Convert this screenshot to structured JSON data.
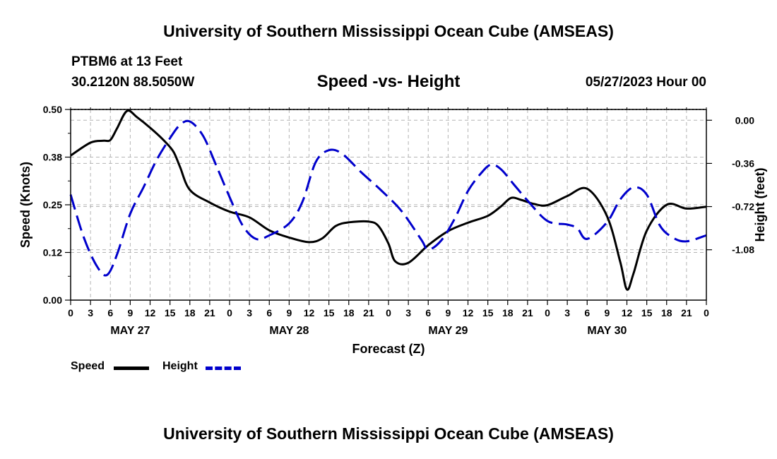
{
  "page": {
    "title_top": "University of Southern Mississippi Ocean Cube (AMSEAS)",
    "title_bottom": "University of Southern Mississippi Ocean Cube (AMSEAS)",
    "station": "PTBM6 at 13 Feet",
    "location": "30.2120N  88.5050W",
    "date_label": "05/27/2023 Hour 00"
  },
  "legend": {
    "speed_label": "Speed",
    "height_label": "Height"
  },
  "chart_data": {
    "type": "line",
    "title": "Speed -vs- Height",
    "xlabel": "Forecast (Z)",
    "ylabel_left": "Speed (Knots)",
    "ylabel_right": "Height (feet)",
    "x_range_hours": [
      0,
      96
    ],
    "x_tick_step_hours": 3,
    "x_tick_labels": [
      "0",
      "3",
      "6",
      "9",
      "12",
      "15",
      "18",
      "21",
      "0",
      "3",
      "6",
      "9",
      "12",
      "15",
      "18",
      "21",
      "0",
      "3",
      "6",
      "9",
      "12",
      "15",
      "18",
      "21",
      "0",
      "3",
      "6",
      "9",
      "12",
      "15",
      "18",
      "21",
      "0"
    ],
    "day_labels": [
      {
        "text": "MAY 27",
        "hour": 9
      },
      {
        "text": "MAY 28",
        "hour": 33
      },
      {
        "text": "MAY 29",
        "hour": 57
      },
      {
        "text": "MAY 30",
        "hour": 81
      }
    ],
    "ylim_left": [
      0,
      0.5
    ],
    "y_ticks_left": [
      0.0,
      0.125,
      0.25,
      0.375,
      0.5
    ],
    "y_tick_labels_left": [
      "0.00",
      "0.12",
      "0.25",
      "0.38",
      "0.50"
    ],
    "ylim_right": [
      -1.5,
      0.09
    ],
    "y_ticks_right": [
      0.0,
      -0.36,
      -0.72,
      -1.08
    ],
    "y_tick_labels_right": [
      "0.00",
      "-0.36",
      "-0.72",
      "-1.08"
    ],
    "grid": true,
    "series": [
      {
        "name": "Speed",
        "axis": "left",
        "color": "#000000",
        "dashed": false,
        "points": [
          [
            0,
            0.379
          ],
          [
            3,
            0.413
          ],
          [
            5,
            0.418
          ],
          [
            6,
            0.42
          ],
          [
            7,
            0.45
          ],
          [
            8.5,
            0.496
          ],
          [
            10,
            0.48
          ],
          [
            12,
            0.452
          ],
          [
            14,
            0.42
          ],
          [
            15.5,
            0.39
          ],
          [
            16.5,
            0.35
          ],
          [
            18,
            0.289
          ],
          [
            21,
            0.256
          ],
          [
            24,
            0.232
          ],
          [
            27,
            0.217
          ],
          [
            30,
            0.183
          ],
          [
            33,
            0.164
          ],
          [
            36,
            0.152
          ],
          [
            38,
            0.162
          ],
          [
            40,
            0.194
          ],
          [
            42,
            0.204
          ],
          [
            45,
            0.206
          ],
          [
            46.5,
            0.194
          ],
          [
            48,
            0.148
          ],
          [
            49,
            0.102
          ],
          [
            51,
            0.098
          ],
          [
            54,
            0.144
          ],
          [
            57,
            0.181
          ],
          [
            60,
            0.203
          ],
          [
            63,
            0.221
          ],
          [
            65,
            0.246
          ],
          [
            66.5,
            0.268
          ],
          [
            68,
            0.263
          ],
          [
            70,
            0.252
          ],
          [
            72,
            0.249
          ],
          [
            75,
            0.273
          ],
          [
            78,
            0.292
          ],
          [
            81,
            0.22
          ],
          [
            83,
            0.1
          ],
          [
            84,
            0.028
          ],
          [
            85,
            0.07
          ],
          [
            87,
            0.182
          ],
          [
            90,
            0.25
          ],
          [
            93,
            0.24
          ],
          [
            96,
            0.245
          ]
        ]
      },
      {
        "name": "Height",
        "axis": "right",
        "color": "#0000cc",
        "dashed": true,
        "points": [
          [
            0,
            -0.62
          ],
          [
            2,
            -0.98
          ],
          [
            4,
            -1.22
          ],
          [
            5.5,
            -1.29
          ],
          [
            7,
            -1.12
          ],
          [
            9,
            -0.78
          ],
          [
            11,
            -0.56
          ],
          [
            13,
            -0.33
          ],
          [
            15,
            -0.15
          ],
          [
            16.5,
            -0.04
          ],
          [
            18,
            -0.01
          ],
          [
            20,
            -0.13
          ],
          [
            22,
            -0.38
          ],
          [
            24,
            -0.64
          ],
          [
            26,
            -0.88
          ],
          [
            28,
            -0.99
          ],
          [
            30,
            -0.96
          ],
          [
            33,
            -0.86
          ],
          [
            35,
            -0.68
          ],
          [
            37,
            -0.35
          ],
          [
            39,
            -0.25
          ],
          [
            41,
            -0.28
          ],
          [
            44,
            -0.44
          ],
          [
            47,
            -0.59
          ],
          [
            50,
            -0.76
          ],
          [
            53,
            -1.0
          ],
          [
            54,
            -1.08
          ],
          [
            56,
            -1.0
          ],
          [
            58,
            -0.82
          ],
          [
            60,
            -0.59
          ],
          [
            62,
            -0.44
          ],
          [
            63.5,
            -0.37
          ],
          [
            65,
            -0.41
          ],
          [
            67,
            -0.54
          ],
          [
            69,
            -0.67
          ],
          [
            72,
            -0.84
          ],
          [
            75,
            -0.87
          ],
          [
            76.5,
            -0.9
          ],
          [
            78,
            -0.99
          ],
          [
            81,
            -0.85
          ],
          [
            83,
            -0.66
          ],
          [
            85,
            -0.56
          ],
          [
            87,
            -0.62
          ],
          [
            89,
            -0.88
          ],
          [
            91,
            -0.98
          ],
          [
            93,
            -1.01
          ],
          [
            96,
            -0.96
          ]
        ]
      }
    ]
  }
}
